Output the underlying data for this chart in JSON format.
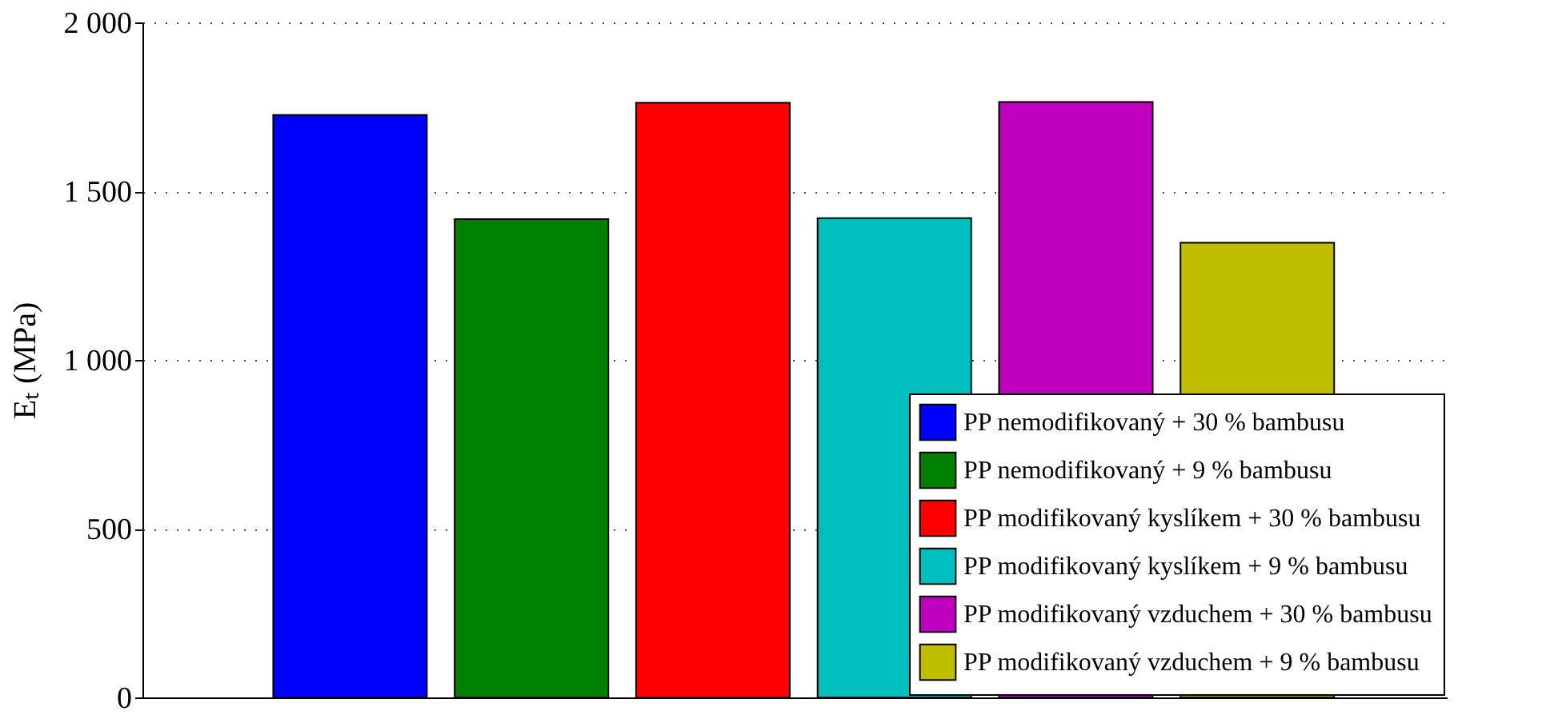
{
  "chart_data": {
    "type": "bar",
    "ylabel": "Eₜ (MPa)",
    "categories": [
      null,
      null,
      null,
      null,
      null,
      null
    ],
    "series": [
      {
        "name": "PP nemodifikovaný + 30 % bambusu",
        "color": "#0000ff",
        "values": [
          1726,
          null,
          null,
          null,
          null,
          null
        ]
      },
      {
        "name": "PP nemodifikovaný + 9 % bambusu",
        "color": "#008000",
        "values": [
          null,
          1417,
          null,
          null,
          null,
          null
        ]
      },
      {
        "name": "PP modifikovaný kyslíkem + 30 % bambusu",
        "color": "#ff0000",
        "values": [
          null,
          null,
          1762,
          null,
          null,
          null
        ]
      },
      {
        "name": "PP modifikovaný kyslíkem + 9 % bambusu",
        "color": "#00bfbf",
        "values": [
          null,
          null,
          null,
          1420,
          null,
          null
        ]
      },
      {
        "name": "PP modifikovaný vzduchem + 30 % bambusu",
        "color": "#bf00bf",
        "values": [
          null,
          null,
          null,
          null,
          1764,
          null
        ]
      },
      {
        "name": "PP modifikovaný vzduchem + 9 % bambusu",
        "color": "#bfbf00",
        "values": [
          null,
          null,
          null,
          null,
          null,
          1347
        ]
      }
    ],
    "ylim": [
      0,
      2000
    ],
    "yticks": [
      0,
      500,
      {
        "value": 1000,
        "label": "1 000"
      },
      {
        "value": 1500,
        "label": "1 500"
      },
      {
        "value": 2000,
        "label": "2 000"
      }
    ],
    "grid": "y",
    "legend": "bottom right",
    "tick_labels": "y"
  }
}
